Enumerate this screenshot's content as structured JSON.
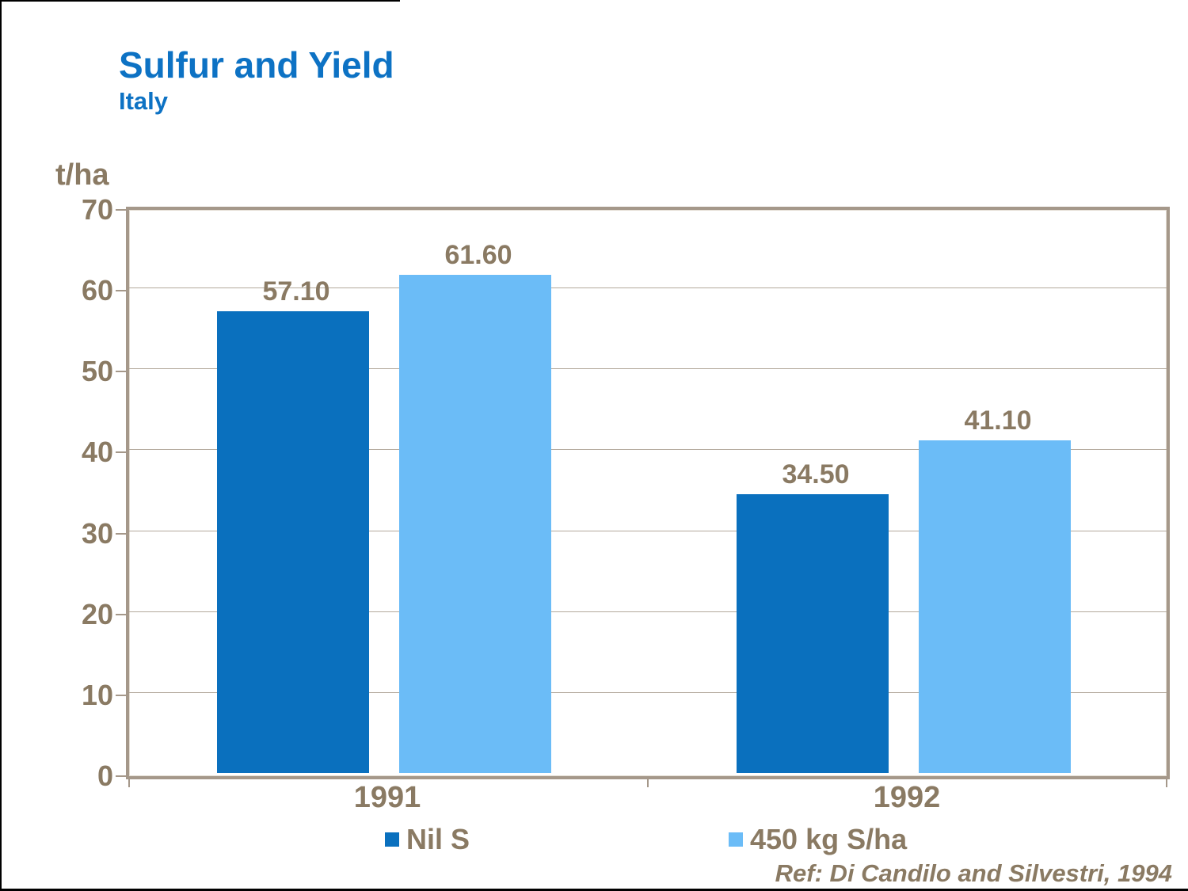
{
  "header": {
    "title": "Sulfur and Yield",
    "subtitle": "Italy"
  },
  "y_axis": {
    "unit_label": "t/ha",
    "min": 0,
    "max": 70,
    "tick_step": 10,
    "tick_labels": [
      "0",
      "10",
      "20",
      "30",
      "40",
      "50",
      "60",
      "70"
    ]
  },
  "chart_data": {
    "type": "bar",
    "title": "Sulfur and Yield",
    "subtitle": "Italy",
    "ylabel": "t/ha",
    "ylim": [
      0,
      70
    ],
    "grid": true,
    "legend_position": "bottom",
    "categories": [
      "1991",
      "1992"
    ],
    "series": [
      {
        "name": "Nil S",
        "color": "#0a70be",
        "values": [
          57.1,
          34.5
        ],
        "value_labels": [
          "57.10",
          "34.50"
        ]
      },
      {
        "name": "450 kg S/ha",
        "color": "#6bbcf7",
        "values": [
          61.6,
          41.1
        ],
        "value_labels": [
          "61.60",
          "41.10"
        ]
      }
    ],
    "annotation": "Ref: Di Candilo and Silvestri, 1994"
  },
  "legend": {
    "items": [
      {
        "label": "Nil S",
        "color": "#0a70be"
      },
      {
        "label": "450 kg S/ha",
        "color": "#6bbcf7"
      }
    ]
  },
  "footer": {
    "reference": "Ref: Di Candilo and Silvestri, 1994"
  },
  "colors": {
    "title_blue": "#0d72c4",
    "text_brown": "#8a7a63",
    "axis_frame": "#a5988a",
    "gridline": "#b3a99c",
    "series_dark_blue": "#0a70be",
    "series_light_blue": "#6bbcf7",
    "background": "#ffffff"
  }
}
